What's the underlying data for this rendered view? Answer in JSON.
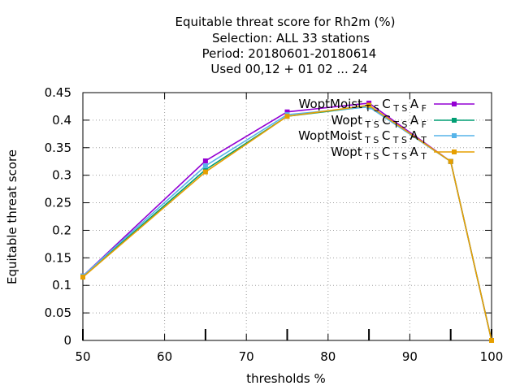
{
  "chart_data": {
    "type": "line",
    "title_lines": [
      "Equitable threat score  for Rh2m (%)",
      "Selection: ALL     33 stations",
      "Period: 20180601-20180614",
      "Used  00,12  + 01 02 ... 24"
    ],
    "xlabel": "thresholds %",
    "ylabel": "Equitable threat score",
    "xlim": [
      50,
      100
    ],
    "ylim": [
      0,
      0.45
    ],
    "xticks": [
      "50",
      "60",
      "70",
      "80",
      "90",
      "100"
    ],
    "yticks": [
      "0",
      "0.05",
      "0.1",
      "0.15",
      "0.2",
      "0.25",
      "0.3",
      "0.35",
      "0.4",
      "0.45"
    ],
    "grid": true,
    "legend_position": "top-right",
    "x": [
      50,
      65,
      75,
      85,
      95,
      100
    ],
    "series": [
      {
        "name": "WoptMoist_TSCTSA_F",
        "label_main": "WoptMoist",
        "label_sub1": "T S",
        "label_mid": "C",
        "label_sub2": "T S",
        "label_end": "A",
        "label_sub3": "F",
        "color": "#9400d3",
        "values": [
          0.117,
          0.326,
          0.415,
          0.431,
          0.325,
          0.0
        ]
      },
      {
        "name": "Wopt_TSCTSA_F",
        "label_main": "Wopt",
        "label_sub1": "T S",
        "label_mid": "C",
        "label_sub2": "T S",
        "label_end": "A",
        "label_sub3": "F",
        "color": "#009e73",
        "values": [
          0.116,
          0.31,
          0.407,
          0.425,
          0.325,
          0.0
        ]
      },
      {
        "name": "WoptMoist_TSCTSA_T",
        "label_main": "WoptMoist",
        "label_sub1": "T S",
        "label_mid": "C",
        "label_sub2": "T S",
        "label_end": "A",
        "label_sub3": "T",
        "color": "#56b4e9",
        "values": [
          0.117,
          0.317,
          0.41,
          0.424,
          0.325,
          0.0
        ]
      },
      {
        "name": "Wopt_TSCTSA_T",
        "label_main": "Wopt",
        "label_sub1": "T S",
        "label_mid": "C",
        "label_sub2": "T S",
        "label_end": "A",
        "label_sub3": "T",
        "color": "#e69f00",
        "values": [
          0.115,
          0.306,
          0.407,
          0.427,
          0.325,
          0.0
        ]
      }
    ]
  }
}
